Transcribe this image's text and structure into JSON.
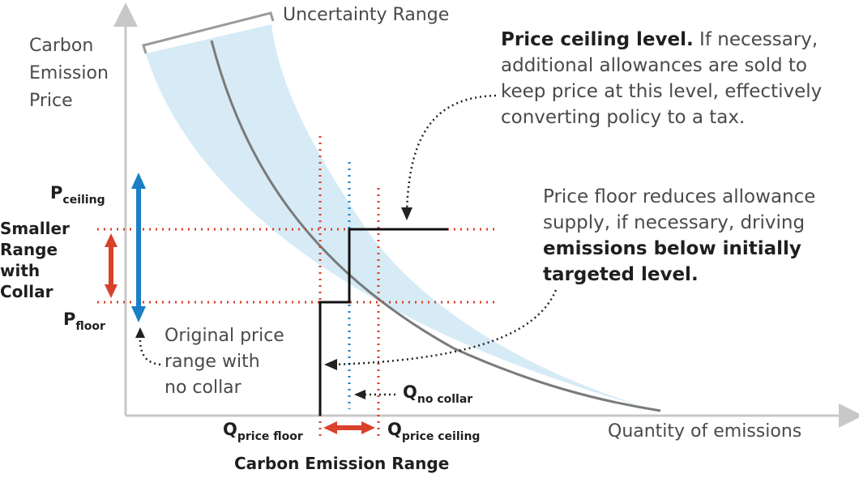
{
  "labels": {
    "y_axis_line1": "Carbon",
    "y_axis_line2": "Emission",
    "y_axis_line3": "Price",
    "x_axis": "Quantity of emissions",
    "uncertainty": "Uncertainty Range",
    "p_ceiling_main": "P",
    "p_ceiling_sub": "ceiling",
    "p_floor_main": "P",
    "p_floor_sub": "floor",
    "smaller_range_1": "Smaller",
    "smaller_range_2": "Range",
    "smaller_range_3": "with",
    "smaller_range_4": "Collar",
    "original_1": "Original price",
    "original_2": "range with",
    "original_3": "no collar",
    "q_nocollar_main": "Q",
    "q_nocollar_sub": "no collar",
    "q_floor_main": "Q",
    "q_floor_sub": "price floor",
    "q_ceiling_main": "Q",
    "q_ceiling_sub": "price ceiling",
    "emission_range": "Carbon Emission Range",
    "ceiling_bold": "Price ceiling level.",
    "ceiling_text_1": " If necessary,",
    "ceiling_text_2": "additional allowances are sold to",
    "ceiling_text_3": "keep price at this level, effectively",
    "ceiling_text_4": "converting policy to a tax.",
    "floor_text_1": "Price floor reduces allowance",
    "floor_text_2": "supply, if necessary, driving",
    "floor_bold_1": "emissions below initially",
    "floor_bold_2": "targeted level."
  },
  "colors": {
    "band": "#d6ebf6",
    "curve": "#7a7a7a",
    "axis": "#c8c8c8",
    "red": "#d9412b",
    "blue": "#1a7fc4",
    "black": "#111111"
  }
}
